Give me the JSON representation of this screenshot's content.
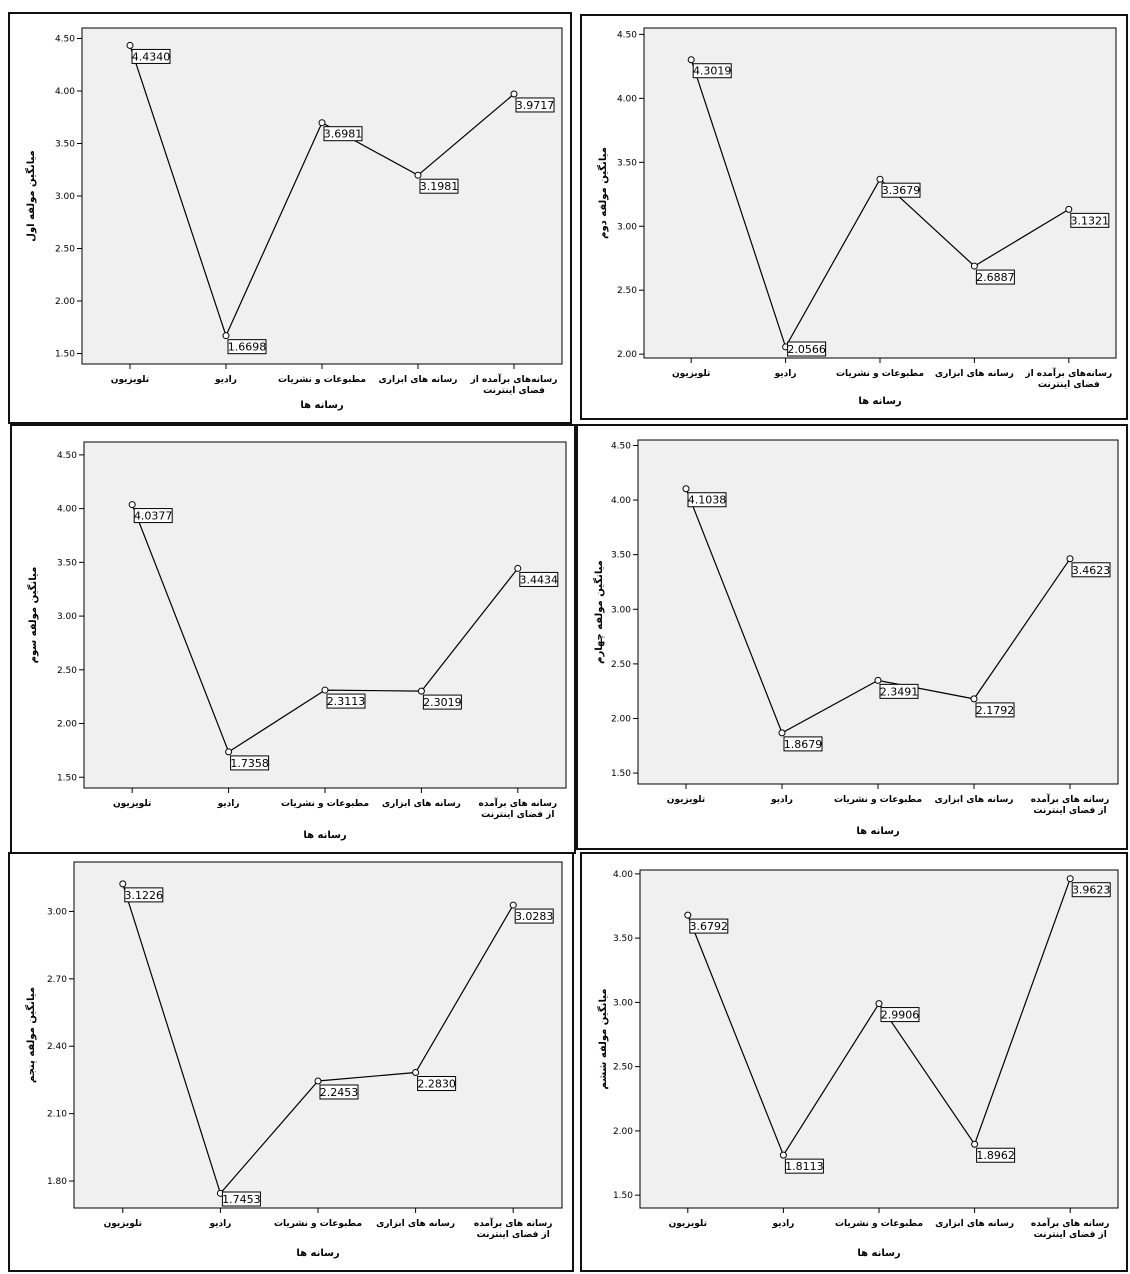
{
  "chart_data": [
    {
      "type": "line",
      "categories": [
        "تلویزیون",
        "رادیو",
        "مطبوعات و نشریات",
        "رسانه های ابزاری",
        "رسانه‌های برآمده از فضای اینترنت"
      ],
      "values": [
        4.434,
        1.6698,
        3.6981,
        3.1981,
        3.9717
      ],
      "data_labels": [
        "4.4340",
        "1.6698",
        "3.6981",
        "3.1981",
        "3.9717"
      ],
      "ylabel": "میانگین مولفه اول",
      "xlabel": "رسانه ها",
      "ylim": [
        1.4,
        4.6
      ],
      "yticks": [
        1.5,
        2.0,
        2.5,
        3.0,
        3.5,
        4.0,
        4.5
      ],
      "ytick_labels": [
        "1.50",
        "2.00",
        "2.50",
        "3.00",
        "3.50",
        "4.00",
        "4.50"
      ]
    },
    {
      "type": "line",
      "categories": [
        "تلویزیون",
        "رادیو",
        "مطبوعات و نشریات",
        "رسانه های ابزاری",
        "رسانه‌های برآمده از فضای اینترنت"
      ],
      "values": [
        4.3019,
        2.0566,
        3.3679,
        2.6887,
        3.1321
      ],
      "data_labels": [
        "4.3019",
        "2.0566",
        "3.3679",
        "2.6887",
        "3.1321"
      ],
      "ylabel": "میانگین مولفه دوم",
      "xlabel": "رسانه ها",
      "ylim": [
        1.97,
        4.55
      ],
      "yticks": [
        2.0,
        2.5,
        3.0,
        3.5,
        4.0,
        4.5
      ],
      "ytick_labels": [
        "2.00",
        "2.50",
        "3.00",
        "3.50",
        "4.00",
        "4.50"
      ]
    },
    {
      "type": "line",
      "categories": [
        "تلویزیون",
        "رادیو",
        "مطبوعات و نشریات",
        "رسانه های ابزاری",
        "رسانه های برآمده از فضای اینترنت"
      ],
      "values": [
        4.0377,
        1.7358,
        2.3113,
        2.3019,
        3.4434
      ],
      "data_labels": [
        "4.0377",
        "1.7358",
        "2.3113",
        "2.3019",
        "3.4434"
      ],
      "ylabel": "میانگین مولفه سوم",
      "xlabel": "رسانه ها",
      "ylim": [
        1.4,
        4.62
      ],
      "yticks": [
        1.5,
        2.0,
        2.5,
        3.0,
        3.5,
        4.0,
        4.5
      ],
      "ytick_labels": [
        "1.50",
        "2.00",
        "2.50",
        "3.00",
        "3.50",
        "4.00",
        "4.50"
      ]
    },
    {
      "type": "line",
      "categories": [
        "تلویزیون",
        "رادیو",
        "مطبوعات و نشریات",
        "رسانه های ابزاری",
        "رسانه های برآمده از فضای اینترنت"
      ],
      "values": [
        4.1038,
        1.8679,
        2.3491,
        2.1792,
        3.4623
      ],
      "data_labels": [
        "4.1038",
        "1.8679",
        "2.3491",
        "2.1792",
        "3.4623"
      ],
      "ylabel": "میانگین مولفه چهارم",
      "xlabel": "رسانه ها",
      "ylim": [
        1.4,
        4.55
      ],
      "yticks": [
        1.5,
        2.0,
        2.5,
        3.0,
        3.5,
        4.0,
        4.5
      ],
      "ytick_labels": [
        "1.50",
        "2.00",
        "2.50",
        "3.00",
        "3.50",
        "4.00",
        "4.50"
      ]
    },
    {
      "type": "line",
      "categories": [
        "تلویزیون",
        "رادیو",
        "مطبوعات و نشریات",
        "رسانه های ابزاری",
        "رسانه های برآمده از فضای اینترنت"
      ],
      "values": [
        3.1226,
        1.7453,
        2.2453,
        2.283,
        3.0283
      ],
      "data_labels": [
        "3.1226",
        "1.7453",
        "2.2453",
        "2.2830",
        "3.0283"
      ],
      "ylabel": "میانگین مولفه پنجم",
      "xlabel": "رسانه ها",
      "ylim": [
        1.68,
        3.22
      ],
      "yticks": [
        1.8,
        2.1,
        2.4,
        2.7,
        3.0
      ],
      "ytick_labels": [
        "1.80",
        "2.10",
        "2.40",
        "2.70",
        "3.00"
      ]
    },
    {
      "type": "line",
      "categories": [
        "تلویزیون",
        "رادیو",
        "مطبوعات و نشریات",
        "رسانه های ابزاری",
        "رسانه های برآمده از فضای اینترنت"
      ],
      "values": [
        3.6792,
        1.8113,
        2.9906,
        1.8962,
        3.9623
      ],
      "data_labels": [
        "3.6792",
        "1.8113",
        "2.9906",
        "1.8962",
        "3.9623"
      ],
      "ylabel": "میانگین مولفه ششم",
      "xlabel": "رسانه ها",
      "ylim": [
        1.4,
        4.03
      ],
      "yticks": [
        1.5,
        2.0,
        2.5,
        3.0,
        3.5,
        4.0
      ],
      "ytick_labels": [
        "1.50",
        "2.00",
        "2.50",
        "3.00",
        "3.50",
        "4.00"
      ]
    }
  ]
}
